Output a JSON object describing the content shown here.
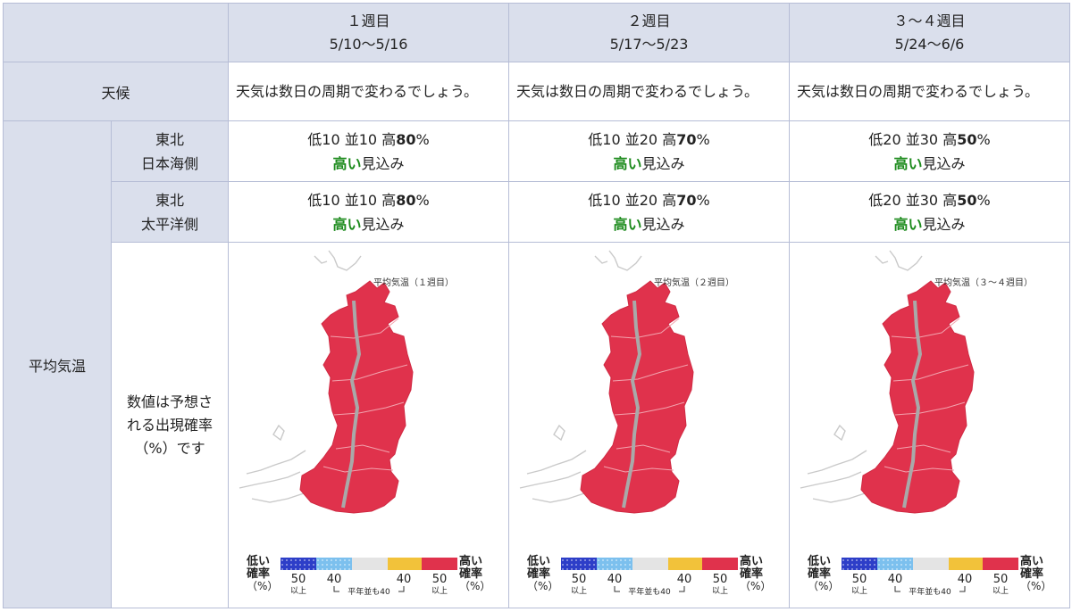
{
  "table": {
    "weeks": [
      {
        "label": "１週目",
        "range": "5/10～5/16"
      },
      {
        "label": "２週目",
        "range": "5/17～5/23"
      },
      {
        "label": "３～４週目",
        "range": "5/24～6/6"
      }
    ],
    "weather": {
      "label": "天候",
      "texts": [
        "天気は数日の周期で変わるでしょう。",
        "天気は数日の周期で変わるでしょう。",
        "天気は数日の周期で変わるでしょう。"
      ]
    },
    "avg_temp": {
      "label": "平均気温",
      "regions": [
        {
          "name_line1": "東北",
          "name_line2": "日本海側",
          "cells": [
            {
              "low": "低10",
              "mid": "並10",
              "high_label": "高",
              "high_value": "80",
              "unit": "%",
              "outlook_hi": "高い",
              "outlook_rest": "見込み"
            },
            {
              "low": "低10",
              "mid": "並20",
              "high_label": "高",
              "high_value": "70",
              "unit": "%",
              "outlook_hi": "高い",
              "outlook_rest": "見込み"
            },
            {
              "low": "低20",
              "mid": "並30",
              "high_label": "高",
              "high_value": "50",
              "unit": "%",
              "outlook_hi": "高い",
              "outlook_rest": "見込み"
            }
          ]
        },
        {
          "name_line1": "東北",
          "name_line2": "太平洋側",
          "cells": [
            {
              "low": "低10",
              "mid": "並10",
              "high_label": "高",
              "high_value": "80",
              "unit": "%",
              "outlook_hi": "高い",
              "outlook_rest": "見込み"
            },
            {
              "low": "低10",
              "mid": "並20",
              "high_label": "高",
              "high_value": "70",
              "unit": "%",
              "outlook_hi": "高い",
              "outlook_rest": "見込み"
            },
            {
              "low": "低20",
              "mid": "並30",
              "high_label": "高",
              "high_value": "50",
              "unit": "%",
              "outlook_hi": "高い",
              "outlook_rest": "見込み"
            }
          ]
        }
      ],
      "note_line1": "数値は予想さ",
      "note_line2": "れる出現確率",
      "note_line3": "（%）です"
    },
    "maps": [
      {
        "title": "平均気温（１週目）"
      },
      {
        "title": "平均気温（２週目）"
      },
      {
        "title": "平均気温（３～４週目）"
      }
    ],
    "legend": {
      "low_line1": "低い",
      "low_line2": "確率",
      "low_line3": "（%）",
      "high_line1": "高い",
      "high_line2": "確率",
      "high_line3": "（%）",
      "tick_50_left": "50",
      "tick_40_left": "40",
      "tick_40_right": "40",
      "tick_50_right": "50",
      "ijou_left": "以上",
      "ijou_right": "以上",
      "normal_note": "平年並も40"
    },
    "colors": {
      "header_bg": "#dadfec",
      "border": "#b6bdd6",
      "outlook_green": "#1b8a1b",
      "map_red": "#e0324c",
      "legend_dark_blue": "#2d3ec8",
      "legend_light_blue": "#7cc0ee",
      "legend_gray": "#e4e4e4",
      "legend_yellow": "#f2c23a",
      "legend_red": "#e0324c"
    }
  }
}
